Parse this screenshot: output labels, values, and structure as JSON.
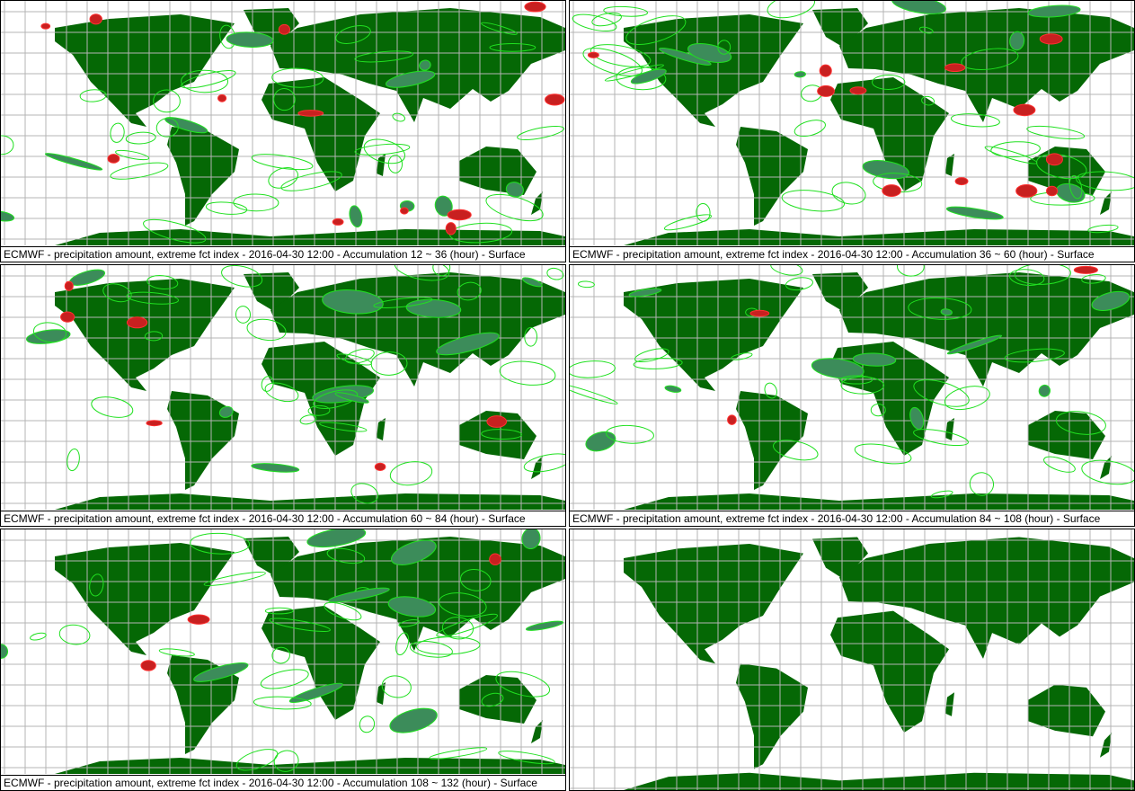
{
  "captions": [
    "ECMWF - precipitation amount, extreme fct index - 2016-04-30 12:00 - Accumulation  12 ~  36 (hour) - Surface",
    "ECMWF - precipitation amount, extreme fct index - 2016-04-30 12:00 - Accumulation  36 ~  60 (hour) - Surface",
    "ECMWF - precipitation amount, extreme fct index - 2016-04-30 12:00 - Accumulation  60 ~  84 (hour) - Surface",
    "ECMWF - precipitation amount, extreme fct index - 2016-04-30 12:00 - Accumulation  84 ~ 108 (hour) - Surface",
    "ECMWF - precipitation amount, extreme fct index - 2016-04-30 12:00 - Accumulation 108 ~ 132 (hour) - Surface"
  ]
}
